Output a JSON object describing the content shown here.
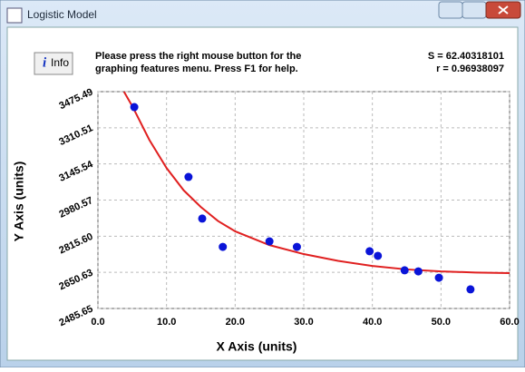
{
  "window": {
    "title": "Logistic Model",
    "info_button": "Info",
    "message": [
      "Please press the right mouse button for the",
      "graphing features menu.  Press F1 for help."
    ],
    "stats": [
      "S = 62.40318101",
      "r = 0.96938097"
    ]
  },
  "chart_data": {
    "type": "scatter",
    "x_label": "X Axis (units)",
    "y_label": "Y Axis (units)",
    "xlim": [
      0,
      60
    ],
    "ylim": [
      2485.65,
      3475.49
    ],
    "xticks": [
      {
        "value": 0,
        "label": "0.0"
      },
      {
        "value": 10,
        "label": "10.0"
      },
      {
        "value": 20,
        "label": "20.0"
      },
      {
        "value": 30,
        "label": "30.0"
      },
      {
        "value": 40,
        "label": "40.0"
      },
      {
        "value": 50,
        "label": "50.0"
      },
      {
        "value": 60,
        "label": "60.0"
      }
    ],
    "yticks": [
      2485.65,
      2650.63,
      {
        "value": 2815.6,
        "label": "2815.60"
      },
      2980.57,
      3145.54,
      3310.51,
      3475.49
    ],
    "grid": true,
    "points": {
      "color": "#0a14d8",
      "x": [
        5.3,
        13.2,
        15.2,
        18.2,
        25,
        29,
        39.6,
        40.8,
        44.7,
        46.7,
        49.7,
        54.3
      ],
      "values": [
        3405,
        3086,
        2896,
        2767,
        2792,
        2767,
        2747,
        2726,
        2660,
        2655,
        2626,
        2573
      ]
    },
    "curve": {
      "color": "#e02020",
      "x": [
        3.8,
        5,
        7.5,
        10,
        12.5,
        15,
        17.5,
        20,
        25,
        30,
        35,
        40,
        45,
        50,
        55,
        60
      ],
      "values": [
        3475,
        3410,
        3255,
        3127,
        3025,
        2949,
        2885,
        2838,
        2775,
        2734,
        2703,
        2680,
        2664,
        2655,
        2650,
        2647
      ]
    }
  }
}
